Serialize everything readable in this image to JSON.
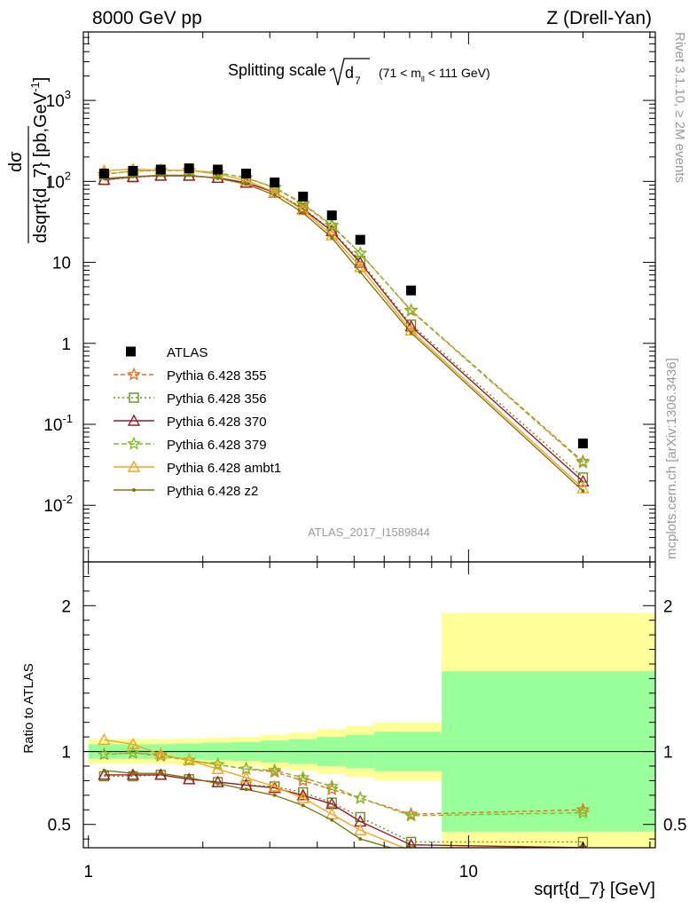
{
  "header": {
    "left": "8000 GeV pp",
    "right": "Z (Drell-Yan)"
  },
  "side": {
    "rivet": "Rivet 3.1.10, ≥ 2M events",
    "mcplots": "mcplots.cern.ch [arXiv:1306.3436]"
  },
  "watermark": "ATLAS_2017_I1589844",
  "chart_data": {
    "type": "scatter",
    "title": "Splitting scale √d₇ (71 < mₗₗ < 111 GeV)",
    "title_main": "Splitting scale",
    "title_sym": "d",
    "title_sub": "7",
    "title_cond_a": "(71 < m",
    "title_cond_sub": "ll",
    "title_cond_b": " < 111 GeV)",
    "xlabel": "sqrt{d_7} [GeV]",
    "ylabel": "dσ / dsqrt{d_7} [pb,GeV⁻¹]",
    "ylabel_num": "dσ",
    "ylabel_den": "dsqrt{d_7} [pb,GeV",
    "ylabel_exp": "-1",
    "ylabel_end": "]",
    "ratio_ylabel": "Ratio to ATLAS",
    "xscale": "log",
    "yscale": "log",
    "xlim": [
      0.97,
      31
    ],
    "ylim": [
      0.002,
      7000
    ],
    "ratio_ylim": [
      0.34,
      2.3
    ],
    "x_ticks": [
      {
        "v": 1,
        "label": "1"
      },
      {
        "v": 10,
        "label": "10"
      }
    ],
    "y_ticks": [
      {
        "v": 0.01,
        "base": "10",
        "exp": "-2"
      },
      {
        "v": 0.1,
        "base": "10",
        "exp": "-1"
      },
      {
        "v": 1,
        "base": "1",
        "exp": ""
      },
      {
        "v": 10,
        "base": "10",
        "exp": ""
      },
      {
        "v": 100,
        "base": "10",
        "exp": "2"
      },
      {
        "v": 1000,
        "base": "10",
        "exp": "3"
      }
    ],
    "ratio_ticks": [
      {
        "v": 0.5,
        "label": "0.5"
      },
      {
        "v": 1,
        "label": "1"
      },
      {
        "v": 2,
        "label": "2"
      }
    ],
    "legend_position": "middle-left",
    "bin_edges": [
      1.0,
      1.2,
      1.42,
      1.69,
      2.0,
      2.38,
      2.83,
      3.36,
      4.0,
      4.76,
      5.66,
      8.5,
      31.0
    ],
    "ratio_band_stat": [
      0.05,
      0.05,
      0.05,
      0.055,
      0.06,
      0.065,
      0.075,
      0.085,
      0.1,
      0.115,
      0.135,
      0.55
    ],
    "ratio_band_total": [
      0.085,
      0.085,
      0.085,
      0.09,
      0.095,
      0.1,
      0.115,
      0.13,
      0.155,
      0.175,
      0.2,
      0.95
    ],
    "data": {
      "name": "ATLAS",
      "color": "#000000",
      "x": [
        1.1,
        1.31,
        1.55,
        1.84,
        2.19,
        2.6,
        3.09,
        3.67,
        4.37,
        5.19,
        7.06,
        20.0
      ],
      "y": [
        125,
        135,
        140,
        145,
        140,
        125,
        97,
        65,
        38,
        19,
        4.5,
        0.058
      ]
    },
    "series": [
      {
        "name": "Pythia 6.428 355",
        "color": "#ee6d2a",
        "marker": "star",
        "dash": "5,3",
        "ratio": [
          0.98,
          0.99,
          0.97,
          0.94,
          0.91,
          0.88,
          0.86,
          0.8,
          0.74,
          0.68,
          0.57,
          0.6
        ]
      },
      {
        "name": "Pythia 6.428 356",
        "color": "#6d8c1c",
        "marker": "square",
        "dash": "2,3",
        "ratio": [
          0.83,
          0.83,
          0.84,
          0.81,
          0.79,
          0.77,
          0.76,
          0.72,
          0.65,
          0.55,
          0.38,
          0.38
        ]
      },
      {
        "name": "Pythia 6.428 370",
        "color": "#9b1c2a",
        "marker": "triangle",
        "dash": "",
        "ratio": [
          0.84,
          0.84,
          0.84,
          0.81,
          0.79,
          0.77,
          0.75,
          0.7,
          0.64,
          0.52,
          0.36,
          0.34
        ]
      },
      {
        "name": "Pythia 6.428 379",
        "color": "#7fbf29",
        "marker": "star",
        "dash": "6,3",
        "ratio": [
          0.98,
          0.99,
          0.98,
          0.94,
          0.91,
          0.88,
          0.87,
          0.82,
          0.76,
          0.68,
          0.56,
          0.58
        ]
      },
      {
        "name": "Pythia 6.428 ambt1",
        "color": "#f5a41d",
        "marker": "triangle",
        "dash": "",
        "ratio": [
          1.08,
          1.05,
          0.98,
          0.94,
          0.88,
          0.82,
          0.76,
          0.68,
          0.57,
          0.46,
          0.32,
          0.28
        ]
      },
      {
        "name": "Pythia 6.428 z2",
        "color": "#7a7a14",
        "marker": "dot",
        "dash": "",
        "ratio": [
          0.87,
          0.85,
          0.85,
          0.82,
          0.78,
          0.74,
          0.7,
          0.63,
          0.53,
          0.4,
          0.3,
          0.26
        ]
      }
    ]
  }
}
